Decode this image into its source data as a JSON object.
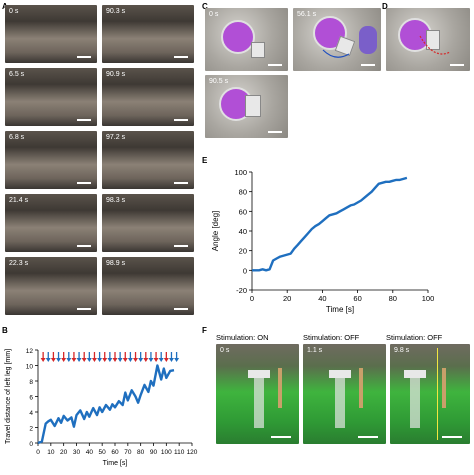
{
  "panels": {
    "A": {
      "letter": "A",
      "timestamps": [
        "0 s",
        "90.3 s",
        "6.5 s",
        "90.9 s",
        "6.8 s",
        "97.2 s",
        "21.4 s",
        "98.3 s",
        "22.3 s",
        "98.9 s"
      ]
    },
    "B": {
      "letter": "B"
    },
    "C": {
      "letter": "C",
      "timestamps": [
        "0 s",
        "56.1 s",
        "90.5 s"
      ]
    },
    "D": {
      "letter": "D"
    },
    "E": {
      "letter": "E"
    },
    "F": {
      "letter": "F",
      "stim_labels": [
        "Stimulation: ON",
        "Stimulation: OFF",
        "Stimulation: OFF"
      ],
      "timestamps": [
        "0 s",
        "1.1 s",
        "9.8 s"
      ]
    }
  },
  "colors": {
    "line": "#1f6fbf",
    "arrow_red": "#d62728",
    "arrow_blue": "#1f6fbf",
    "purple": "#b14fd6",
    "green": "#3fb43e"
  },
  "chart_data": [
    {
      "id": "E",
      "type": "line",
      "xlabel": "Time [s]",
      "ylabel": "Angle [deg]",
      "xlim": [
        0,
        100
      ],
      "ylim": [
        -20,
        100
      ],
      "xticks": [
        "0",
        "20",
        "40",
        "60",
        "80",
        "100"
      ],
      "yticks": [
        "-20",
        "0",
        "20",
        "40",
        "60",
        "80",
        "100"
      ],
      "x": [
        0,
        2,
        4,
        6,
        8,
        10,
        12,
        14,
        16,
        18,
        20,
        22,
        24,
        26,
        28,
        30,
        32,
        34,
        36,
        38,
        40,
        42,
        44,
        46,
        48,
        50,
        52,
        54,
        56,
        58,
        60,
        62,
        64,
        66,
        68,
        70,
        72,
        74,
        76,
        78,
        80,
        82,
        84,
        86,
        88
      ],
      "y": [
        0,
        0,
        0,
        1,
        0,
        1,
        10,
        12,
        14,
        15,
        16,
        17,
        22,
        26,
        30,
        34,
        38,
        42,
        45,
        47,
        50,
        53,
        56,
        57,
        58,
        60,
        62,
        64,
        66,
        67,
        69,
        71,
        74,
        77,
        80,
        84,
        88,
        89,
        90,
        90,
        91,
        92,
        92,
        93,
        94
      ]
    },
    {
      "id": "B",
      "type": "line",
      "xlabel": "Time [s]",
      "ylabel": "Travel distance of left leg [mm]",
      "xlim": [
        0,
        120
      ],
      "ylim": [
        0,
        12
      ],
      "xticks": [
        "0",
        "10",
        "20",
        "30",
        "40",
        "50",
        "60",
        "70",
        "80",
        "90",
        "100",
        "110",
        "120"
      ],
      "yticks": [
        "0",
        "2",
        "4",
        "6",
        "8",
        "10",
        "12"
      ],
      "x": [
        0,
        3,
        6,
        8,
        10,
        13,
        16,
        18,
        20,
        23,
        26,
        28,
        30,
        33,
        36,
        38,
        40,
        43,
        46,
        48,
        50,
        53,
        56,
        58,
        60,
        63,
        66,
        68,
        70,
        73,
        76,
        78,
        80,
        83,
        86,
        88,
        90,
        93,
        96,
        98,
        100,
        103,
        106
      ],
      "y": [
        0,
        0.2,
        2.5,
        2.8,
        3.0,
        2.2,
        3.2,
        2.6,
        3.5,
        2.9,
        3.3,
        2.1,
        3.6,
        4.2,
        3.1,
        4.0,
        3.4,
        4.5,
        3.6,
        4.6,
        4.0,
        4.9,
        4.3,
        5.0,
        4.6,
        5.4,
        4.9,
        6.5,
        5.5,
        6.8,
        6.0,
        5.2,
        6.2,
        7.5,
        6.6,
        8.0,
        7.4,
        10.0,
        8.2,
        9.6,
        8.4,
        9.3,
        9.4
      ],
      "arrows": {
        "times": [
          4,
          8,
          12,
          16,
          20,
          24,
          28,
          32,
          36,
          40,
          44,
          48,
          52,
          56,
          60,
          64,
          68,
          72,
          76,
          80,
          84,
          88,
          92,
          96,
          100,
          104,
          108
        ],
        "colors": [
          "red",
          "blue",
          "red",
          "blue",
          "red",
          "blue",
          "red",
          "blue",
          "red",
          "blue",
          "red",
          "blue",
          "red",
          "blue",
          "red",
          "blue",
          "red",
          "blue",
          "red",
          "blue",
          "red",
          "blue",
          "red",
          "blue",
          "red",
          "blue",
          "blue"
        ]
      }
    }
  ]
}
